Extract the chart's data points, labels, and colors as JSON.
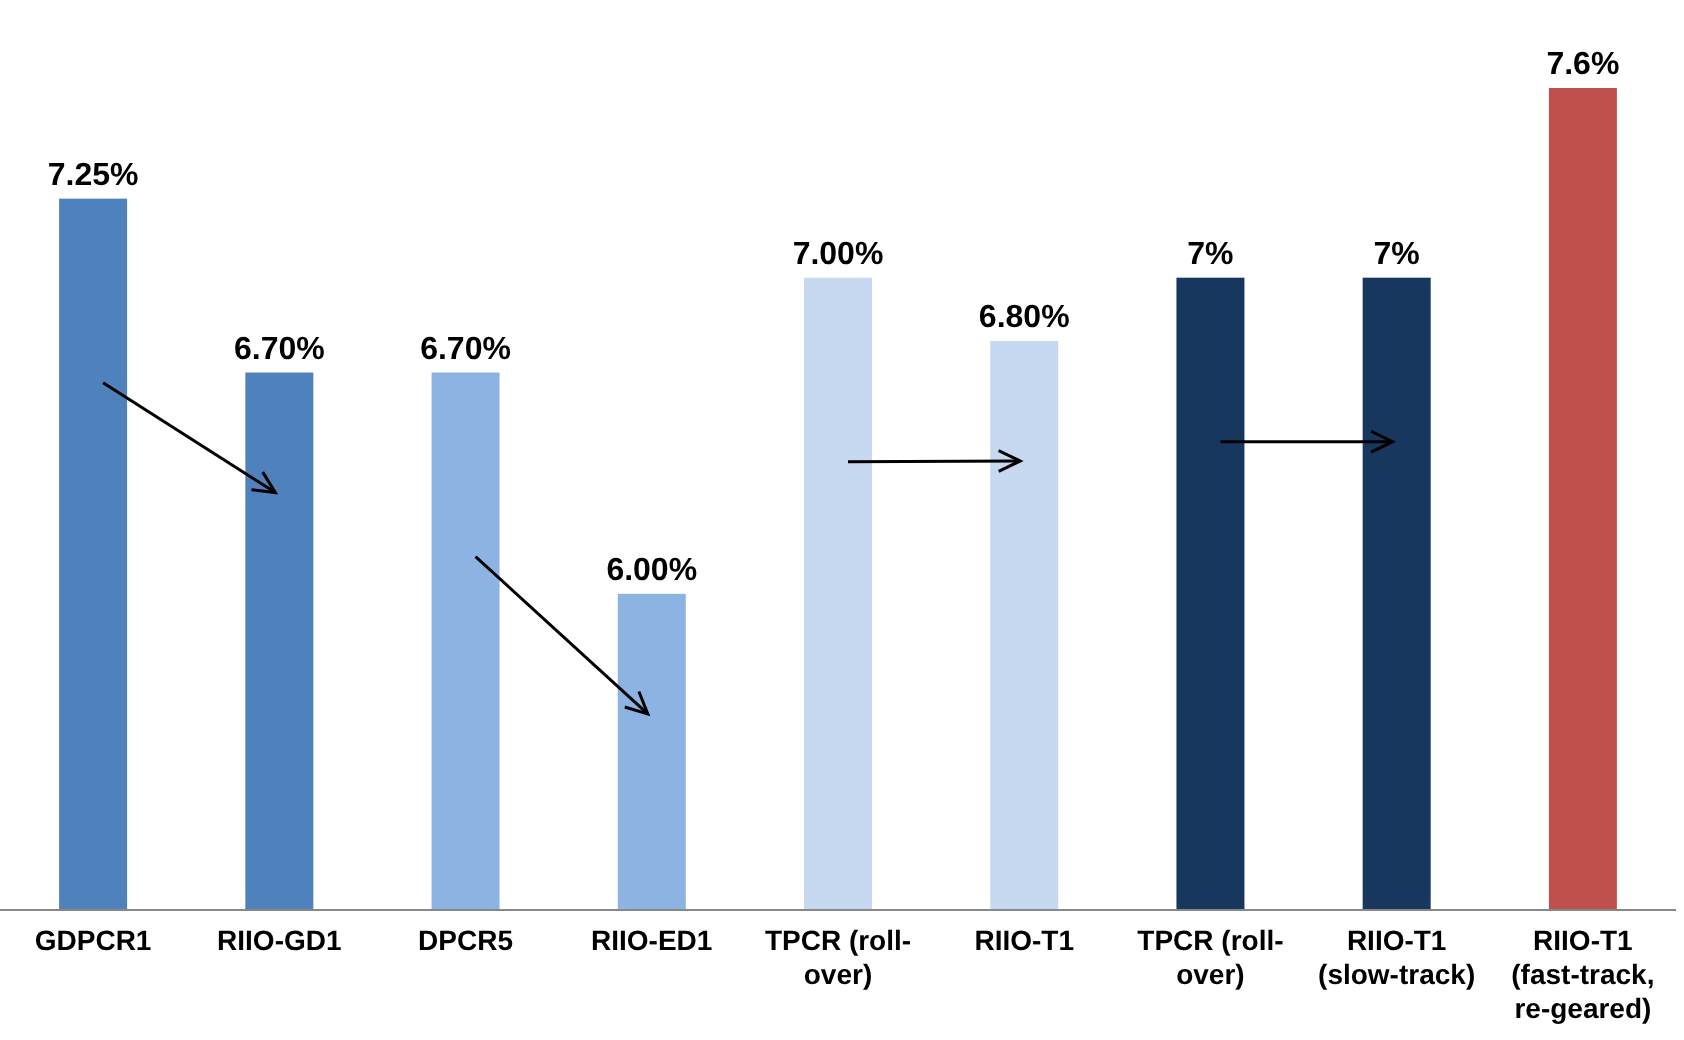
{
  "chart_data": {
    "type": "bar",
    "categories": [
      "GDPCR1",
      "RIIO-GD1",
      "DPCR5",
      "RIIO-ED1",
      "TPCR (roll-over)",
      "RIIO-T1",
      "TPCR (roll-over)",
      "RIIO-T1 (slow-track)",
      "RIIO-T1 (fast-track, re-geared)"
    ],
    "values": [
      7.25,
      6.7,
      6.7,
      6.0,
      7.0,
      6.8,
      7,
      7,
      7.6
    ],
    "colors": [
      "#4f81bd",
      "#4f81bd",
      "#8db3e2",
      "#8db3e2",
      "#c6d9f1",
      "#c6d9f1",
      "#17375e",
      "#17375e",
      "#c0504d"
    ],
    "value_labels": [
      "7.25%",
      "6.70%",
      "6.70%",
      "6.00%",
      "7.00%",
      "6.80%",
      "7%",
      "7%",
      "7.6%"
    ],
    "ylim": [
      5,
      7.6
    ],
    "tick_labels": "x"
  }
}
